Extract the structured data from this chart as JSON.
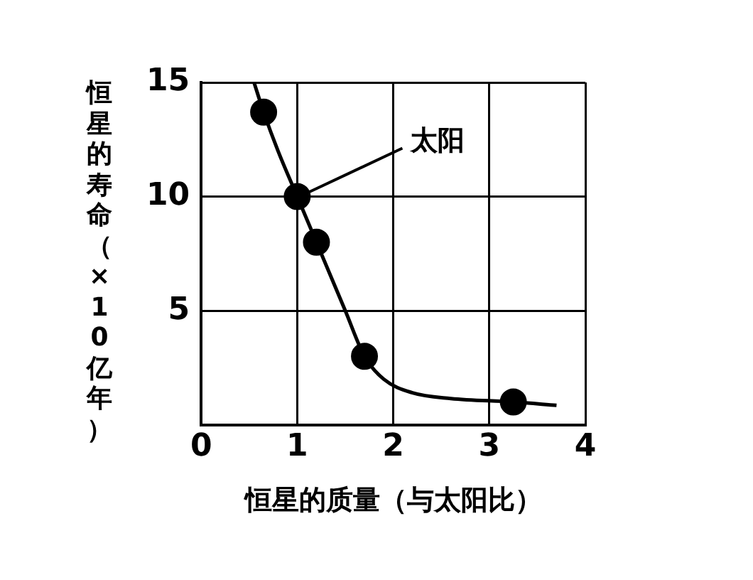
{
  "chart_data": {
    "type": "line",
    "xlabel": "恒星的质量（与太阳比）",
    "ylabel": "恒星的寿命（×10亿年）",
    "xlim": [
      0,
      4
    ],
    "xticks": [
      0,
      1,
      2,
      3,
      4
    ],
    "ylim": [
      0,
      15
    ],
    "yticks": [
      5,
      10,
      15
    ],
    "grid": true,
    "legend": false,
    "annotations": [
      {
        "text": "太阳",
        "x": 1,
        "y": 10
      }
    ],
    "series": [
      {
        "type": "line",
        "color": "#000000",
        "marker": "none",
        "x": [
          0.55,
          0.65,
          0.8,
          1,
          1.2,
          1.5,
          1.7,
          1.9,
          2.2,
          2.6,
          3.25,
          3.7
        ],
        "values": [
          15,
          13.7,
          12,
          10,
          8,
          5,
          3,
          2,
          1.4,
          1.15,
          1,
          0.85
        ]
      },
      {
        "type": "scatter",
        "color": "#000000",
        "marker": "circle",
        "x": [
          0.65,
          1,
          1.2,
          1.7,
          3.25
        ],
        "values": [
          13.7,
          10,
          8,
          3,
          1
        ]
      }
    ]
  }
}
